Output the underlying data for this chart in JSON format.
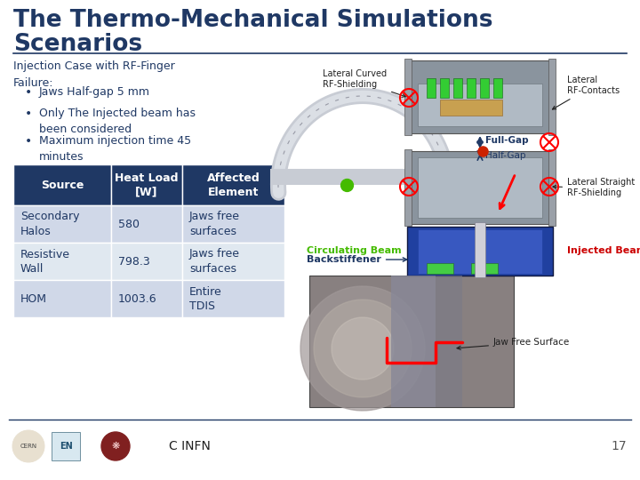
{
  "title_line1": "The Thermo-Mechanical Simulations",
  "title_line2": "Scenarios",
  "title_color": "#1F3864",
  "bg_color": "#FFFFFF",
  "subtitle": "Injection Case with RF-Finger\nFailure:",
  "subtitle_color": "#1F3864",
  "bullets": [
    "Jaws Half-gap 5 mm",
    "Only The Injected beam has\nbeen considered",
    "Maximum injection time 45\nminutes"
  ],
  "bullet_color": "#1F3864",
  "table_headers": [
    "Source",
    "Heat Load\n[W]",
    "Affected\nElement"
  ],
  "table_header_bg": "#1F3864",
  "table_header_fg": "#FFFFFF",
  "table_rows": [
    [
      "Secondary\nHalos",
      "580",
      "Jaws free\nsurfaces"
    ],
    [
      "Resistive\nWall",
      "798.3",
      "Jaws free\nsurfaces"
    ],
    [
      "HOM",
      "1003.6",
      "Entire\nTDIS"
    ]
  ],
  "table_row_bg_odd": "#D0D8E8",
  "table_row_bg_even": "#E0E8F0",
  "table_text_color": "#1F3864",
  "footer_line_color": "#1F3864",
  "page_number": "17",
  "page_number_color": "#555555",
  "underline_color": "#1F3864",
  "label_color": "#202020",
  "circ_beam_color": "#44BB00",
  "injected_beam_color": "#CC0000",
  "gap_arrow_color": "#1F3864"
}
